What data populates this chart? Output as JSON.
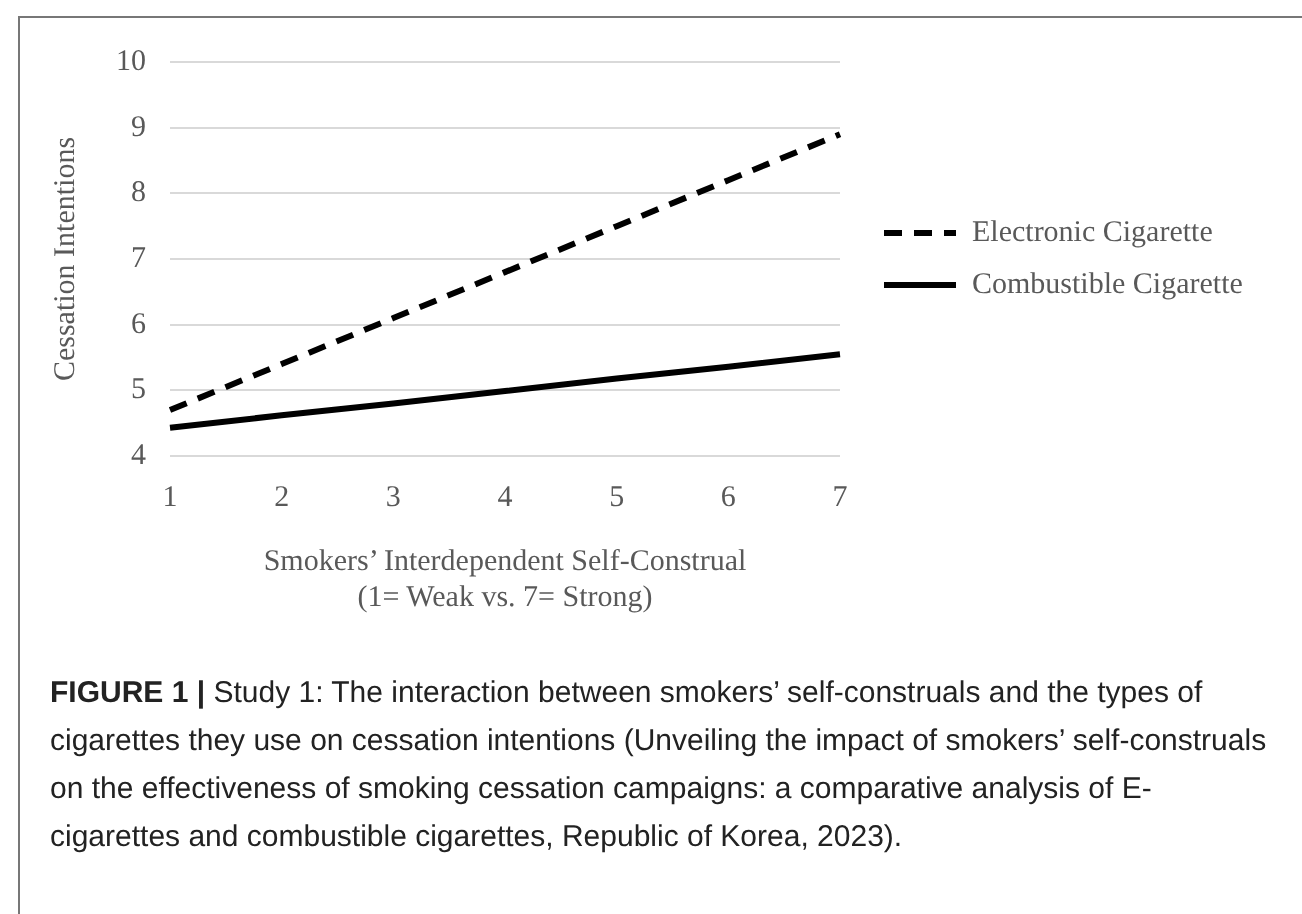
{
  "chart_data": {
    "type": "line",
    "xlabel": "Smokers’ Interdependent Self-Construal\n(1= Weak vs. 7= Strong)",
    "ylabel": "Cessation Intentions",
    "categories": [
      "1",
      "2",
      "3",
      "4",
      "5",
      "6",
      "7"
    ],
    "series": [
      {
        "name": "Electronic Cigarette",
        "color": "#000000",
        "line_style": "dashed",
        "values": [
          4.7,
          5.4,
          6.1,
          6.8,
          7.5,
          8.2,
          8.9
        ]
      },
      {
        "name": "Combustible Cigarette",
        "color": "#000000",
        "line_style": "solid",
        "values": [
          4.43,
          4.62,
          4.8,
          4.99,
          5.18,
          5.36,
          5.55
        ]
      }
    ],
    "ylim": [
      4,
      10
    ],
    "yticks": [
      4,
      5,
      6,
      7,
      8,
      9,
      10
    ],
    "grid": "y",
    "legend": "right",
    "marker": "none",
    "annotations": [
      "FIGURE 1 |",
      "Study 1: The interaction between smokers’ self-construals and the types of cigarettes they use on cessation intentions (Unveiling the impact of smokers’ self-construals on the effectiveness of smoking cessation campaigns: a comparative analysis of E-cigarettes and combustible cigarettes, Republic of Korea, 2023)."
    ]
  }
}
